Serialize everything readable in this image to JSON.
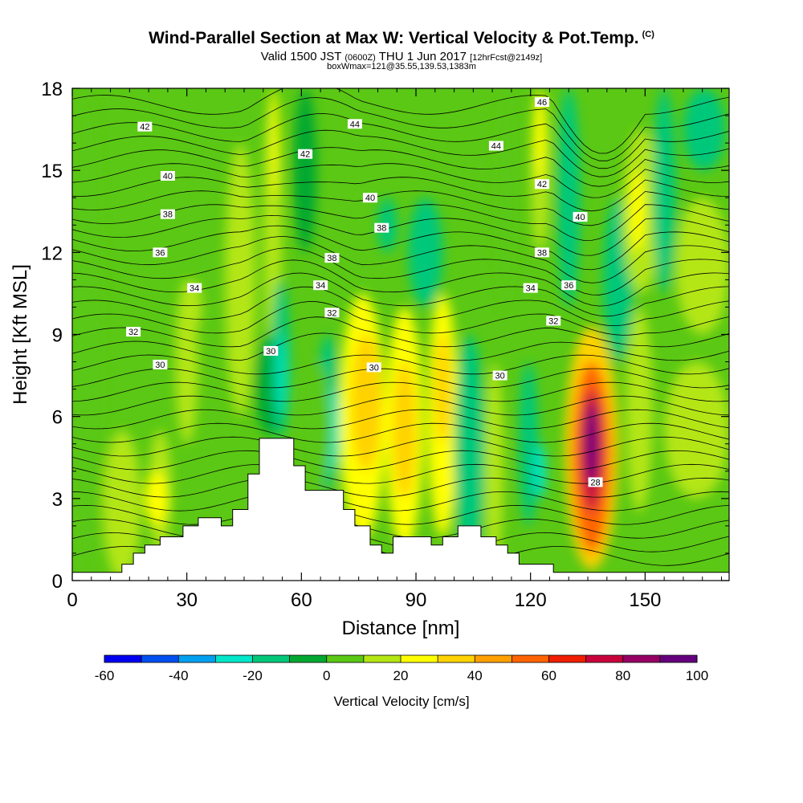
{
  "header": {
    "title": "Wind-Parallel Section at Max W: Vertical Velocity & Pot.Temp.",
    "copyright": "(C)",
    "valid_prefix": "Valid 1500 JST",
    "valid_utc": "(0600Z)",
    "valid_date": "THU 1 Jun 2017",
    "forecast": "[12hrFcst@2149z]",
    "boxwmax": "boxWmax=121@35.55,139.53,1383m"
  },
  "chart_data": {
    "type": "heatmap",
    "xlabel": "Distance [nm]",
    "ylabel": "Height [Kft MSL]",
    "xlim": [
      0,
      172
    ],
    "ylim": [
      0,
      18
    ],
    "xticks": [
      0,
      30,
      60,
      90,
      120,
      150
    ],
    "yticks": [
      0,
      3,
      6,
      9,
      12,
      15,
      18
    ],
    "colorbar": {
      "label": "Vertical Velocity [cm/s]",
      "tick_labels": [
        "-60",
        "-40",
        "-20",
        "0",
        "20",
        "40",
        "60",
        "80",
        "100"
      ],
      "levels": [
        -60,
        -50,
        -40,
        -30,
        -20,
        -10,
        0,
        10,
        20,
        30,
        40,
        50,
        60,
        70,
        80,
        90,
        100
      ],
      "colors": [
        "#0000f0",
        "#0050f0",
        "#00a0f0",
        "#00e6c8",
        "#00c87a",
        "#00a832",
        "#5ac814",
        "#b4e614",
        "#ffff00",
        "#ffd200",
        "#ffa000",
        "#ff6400",
        "#f01e00",
        "#c8003c",
        "#960064",
        "#64007d"
      ]
    },
    "velocity_cells": [
      {
        "x": [
          0,
          8
        ],
        "y": [
          0,
          18
        ],
        "w": 5
      },
      {
        "x": [
          8,
          18
        ],
        "y": [
          0,
          5.5
        ],
        "w": 12
      },
      {
        "x": [
          20,
          26
        ],
        "y": [
          1,
          5.5
        ],
        "w": 14
      },
      {
        "x": [
          19,
          25
        ],
        "y": [
          2,
          4
        ],
        "w": 22
      },
      {
        "x": [
          27,
          33
        ],
        "y": [
          5,
          11
        ],
        "w": 12
      },
      {
        "x": [
          40,
          48
        ],
        "y": [
          6,
          16
        ],
        "w": 11
      },
      {
        "x": [
          43,
          47
        ],
        "y": [
          9,
          14
        ],
        "w": 14
      },
      {
        "x": [
          28,
          34
        ],
        "y": [
          9,
          11
        ],
        "w": 13
      },
      {
        "x": [
          50,
          55
        ],
        "y": [
          8,
          18
        ],
        "w": 12
      },
      {
        "x": [
          52,
          54
        ],
        "y": [
          14,
          18
        ],
        "w": 20
      },
      {
        "x": [
          48,
          55
        ],
        "y": [
          5.3,
          9
        ],
        "w": -10
      },
      {
        "x": [
          52,
          57
        ],
        "y": [
          5.2,
          11
        ],
        "w": -15
      },
      {
        "x": [
          54,
          56
        ],
        "y": [
          6,
          9
        ],
        "w": -25
      },
      {
        "x": [
          58,
          64
        ],
        "y": [
          12,
          18
        ],
        "w": -5
      },
      {
        "x": [
          64,
          70
        ],
        "y": [
          3.3,
          9
        ],
        "w": -12
      },
      {
        "x": [
          66,
          70
        ],
        "y": [
          4,
          7
        ],
        "w": -22
      },
      {
        "x": [
          60,
          68
        ],
        "y": [
          3.3,
          8
        ],
        "w": 8
      },
      {
        "x": [
          70,
          82
        ],
        "y": [
          1.5,
          10.5
        ],
        "w": 22
      },
      {
        "x": [
          73,
          81
        ],
        "y": [
          4,
          9
        ],
        "w": 33
      },
      {
        "x": [
          82,
          92
        ],
        "y": [
          1.2,
          10
        ],
        "w": 24
      },
      {
        "x": [
          84,
          90
        ],
        "y": [
          3,
          8
        ],
        "w": 30
      },
      {
        "x": [
          93,
          101
        ],
        "y": [
          1.6,
          10.5
        ],
        "w": 22
      },
      {
        "x": [
          95,
          99
        ],
        "y": [
          5,
          9
        ],
        "w": 34
      },
      {
        "x": [
          88,
          97
        ],
        "y": [
          10,
          14
        ],
        "w": -12
      },
      {
        "x": [
          100,
          108
        ],
        "y": [
          0.5,
          9
        ],
        "w": -14
      },
      {
        "x": [
          108,
          113
        ],
        "y": [
          0.5,
          8
        ],
        "w": 14
      },
      {
        "x": [
          111,
          116
        ],
        "y": [
          10,
          18
        ],
        "w": 8
      },
      {
        "x": [
          117,
          122
        ],
        "y": [
          2,
          8
        ],
        "w": -15
      },
      {
        "x": [
          121,
          124
        ],
        "y": [
          3,
          5
        ],
        "w": -25
      },
      {
        "x": [
          120,
          125
        ],
        "y": [
          12,
          18
        ],
        "w": 15
      },
      {
        "x": [
          121,
          124
        ],
        "y": [
          14.5,
          18
        ],
        "w": 25
      },
      {
        "x": [
          127,
          133
        ],
        "y": [
          10,
          18
        ],
        "w": -12
      },
      {
        "x": [
          129,
          143
        ],
        "y": [
          0.4,
          9.3
        ],
        "w": 35
      },
      {
        "x": [
          131,
          141
        ],
        "y": [
          1,
          8
        ],
        "w": 55
      },
      {
        "x": [
          133,
          139
        ],
        "y": [
          2.5,
          7
        ],
        "w": 78
      },
      {
        "x": [
          134.5,
          137.5
        ],
        "y": [
          3.5,
          6.5
        ],
        "w": 96
      },
      {
        "x": [
          139,
          147
        ],
        "y": [
          8,
          14
        ],
        "w": -13
      },
      {
        "x": [
          145,
          152
        ],
        "y": [
          2.5,
          10
        ],
        "w": 12
      },
      {
        "x": [
          144,
          154
        ],
        "y": [
          10.5,
          16.5
        ],
        "w": 14
      },
      {
        "x": [
          146,
          150
        ],
        "y": [
          12,
          15
        ],
        "w": 25
      },
      {
        "x": [
          152,
          158
        ],
        "y": [
          10.5,
          18
        ],
        "w": -12
      },
      {
        "x": [
          158,
          172
        ],
        "y": [
          9,
          14
        ],
        "w": 11
      },
      {
        "x": [
          160,
          171
        ],
        "y": [
          15,
          18
        ],
        "w": -12
      },
      {
        "x": [
          155,
          172
        ],
        "y": [
          3,
          8
        ],
        "w": 12
      },
      {
        "x": [
          80,
          85
        ],
        "y": [
          12,
          14
        ],
        "w": -14
      }
    ],
    "theta_contour_labels": [
      {
        "text": "46",
        "x": 123,
        "y": 17.5
      },
      {
        "text": "44",
        "x": 74,
        "y": 16.7
      },
      {
        "text": "44",
        "x": 111,
        "y": 15.9
      },
      {
        "text": "42",
        "x": 19,
        "y": 16.6
      },
      {
        "text": "42",
        "x": 61,
        "y": 15.6
      },
      {
        "text": "42",
        "x": 123,
        "y": 14.5
      },
      {
        "text": "40",
        "x": 25,
        "y": 14.8
      },
      {
        "text": "40",
        "x": 78,
        "y": 14.0
      },
      {
        "text": "40",
        "x": 133,
        "y": 13.3
      },
      {
        "text": "38",
        "x": 25,
        "y": 13.4
      },
      {
        "text": "38",
        "x": 81,
        "y": 12.9
      },
      {
        "text": "38",
        "x": 68,
        "y": 11.8
      },
      {
        "text": "38",
        "x": 123,
        "y": 12.0
      },
      {
        "text": "36",
        "x": 23,
        "y": 12.0
      },
      {
        "text": "36",
        "x": 130,
        "y": 10.8
      },
      {
        "text": "34",
        "x": 32,
        "y": 10.7
      },
      {
        "text": "34",
        "x": 65,
        "y": 10.8
      },
      {
        "text": "34",
        "x": 120,
        "y": 10.7
      },
      {
        "text": "32",
        "x": 16,
        "y": 9.1
      },
      {
        "text": "32",
        "x": 68,
        "y": 9.8
      },
      {
        "text": "32",
        "x": 126,
        "y": 9.5
      },
      {
        "text": "30",
        "x": 23,
        "y": 7.9
      },
      {
        "text": "30",
        "x": 52,
        "y": 8.4
      },
      {
        "text": "30",
        "x": 79,
        "y": 7.8
      },
      {
        "text": "30",
        "x": 112,
        "y": 7.5
      },
      {
        "text": "28",
        "x": 137,
        "y": 3.6
      }
    ],
    "terrain_profile": [
      [
        0,
        0.3
      ],
      [
        13,
        0.3
      ],
      [
        13,
        0.6
      ],
      [
        16,
        0.6
      ],
      [
        16,
        1.0
      ],
      [
        19,
        1.0
      ],
      [
        19,
        1.3
      ],
      [
        23,
        1.3
      ],
      [
        23,
        1.6
      ],
      [
        29,
        1.6
      ],
      [
        29,
        2.0
      ],
      [
        33,
        2.0
      ],
      [
        33,
        2.3
      ],
      [
        39,
        2.3
      ],
      [
        39,
        2.0
      ],
      [
        42,
        2.0
      ],
      [
        42,
        2.6
      ],
      [
        46,
        2.6
      ],
      [
        46,
        3.9
      ],
      [
        49,
        3.9
      ],
      [
        49,
        5.2
      ],
      [
        58,
        5.2
      ],
      [
        58,
        4.2
      ],
      [
        61,
        4.2
      ],
      [
        61,
        3.3
      ],
      [
        71,
        3.3
      ],
      [
        71,
        2.6
      ],
      [
        74,
        2.6
      ],
      [
        74,
        2.0
      ],
      [
        78,
        2.0
      ],
      [
        78,
        1.3
      ],
      [
        81,
        1.3
      ],
      [
        81,
        1.0
      ],
      [
        84,
        1.0
      ],
      [
        84,
        1.6
      ],
      [
        94,
        1.6
      ],
      [
        94,
        1.3
      ],
      [
        97,
        1.3
      ],
      [
        97,
        1.6
      ],
      [
        101,
        1.6
      ],
      [
        101,
        2.0
      ],
      [
        107,
        2.0
      ],
      [
        107,
        1.6
      ],
      [
        111,
        1.6
      ],
      [
        111,
        1.3
      ],
      [
        114,
        1.3
      ],
      [
        114,
        1.0
      ],
      [
        117,
        1.0
      ],
      [
        117,
        0.6
      ],
      [
        126,
        0.6
      ],
      [
        126,
        0.3
      ],
      [
        172,
        0.3
      ]
    ]
  }
}
